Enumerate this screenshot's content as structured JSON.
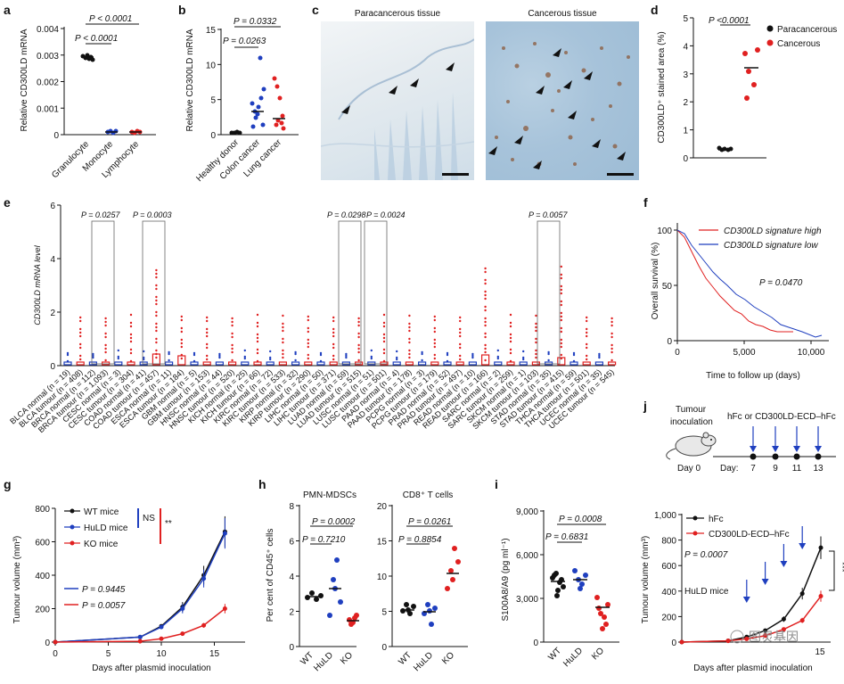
{
  "panels": {
    "a": {
      "label": "a",
      "ylabel": "Relative CD300LD mRNA",
      "yticks": [
        "0",
        "0.001",
        "0.002",
        "0.003",
        "0.004"
      ],
      "categories": [
        "Granulocyte",
        "Monocyte",
        "Lymphocyte"
      ],
      "pvals": [
        "P < 0.0001",
        "P < 0.0001"
      ],
      "colors": [
        "#111111",
        "#1f3fbf",
        "#e02020"
      ]
    },
    "b": {
      "label": "b",
      "ylabel": "Relative CD300LD mRNA",
      "yticks": [
        "0",
        "5",
        "10",
        "15"
      ],
      "categories": [
        "Healthy donor",
        "Colon cancer",
        "Lung cancer"
      ],
      "pvals": [
        "P = 0.0332",
        "P = 0.0263"
      ]
    },
    "c": {
      "label": "c",
      "left_title": "Paracancerous tissue",
      "right_title": "Cancerous tissue"
    },
    "d": {
      "label": "d",
      "ylabel": "CD300LD⁺ stained area (%)",
      "yticks": [
        "0",
        "1",
        "2",
        "3",
        "4",
        "5"
      ],
      "pval": "P <0.0001",
      "legend": [
        "Paracancerous",
        "Cancerous"
      ]
    },
    "e": {
      "label": "e",
      "ylabel": "CD300LD mRNA level",
      "yticks": [
        "0",
        "2",
        "4",
        "6"
      ],
      "pvals": [
        "P = 0.0257",
        "P = 0.0003",
        "P = 0.0298",
        "P = 0.0024",
        "P = 0.0057"
      ],
      "categories": [
        "BLCA normal (n = 19)",
        "BLCA tumour (n = 408)",
        "BRCA normal (n = 112)",
        "BRCA tumour (n = 1,093)",
        "CESC normal (n = 3)",
        "CESC tumour (n = 304)",
        "COAD normal (n = 41)",
        "COAD tumour (n = 457)",
        "ESCA normal (n = 11)",
        "ESCA tumour (n = 184)",
        "GBM normal (n = 5)",
        "GBM tumour (n = 153)",
        "HNSC normal (n = 44)",
        "HNSC tumour (n = 520)",
        "KICH normal (n = 25)",
        "KICH tumour (n = 66)",
        "KIRC normal (n = 72)",
        "KIRC tumour (n = 533)",
        "KIRP normal (n = 32)",
        "KIRP tumour (n = 290)",
        "LIHC normal (n = 50)",
        "LIHC tumour (n = 371)",
        "LUAD normal (n = 59)",
        "LUAD tumour (n = 515)",
        "LUSC normal (n = 51)",
        "LUSC tumour (n = 501)",
        "PAAD normal (n = 4)",
        "PAAD tumour (n = 178)",
        "PCPG normal (n = 3)",
        "PCPG tumour (n = 179)",
        "PRAD normal (n = 52)",
        "PRAD tumour (n = 497)",
        "READ normal (n = 10)",
        "READ tumour (n = 166)",
        "SARC normal (n = 2)",
        "SARC tumour (n = 259)",
        "SKCM normal (n = 1)",
        "SKCM tumour (n = 103)",
        "STAD normal (n = 35)",
        "STAD tumour (n = 415)",
        "THCA normal (n = 59)",
        "THCA tumour (n = 501)",
        "UCEC normal (n = 35)",
        "UCEC tumour (n = 545)"
      ]
    },
    "f": {
      "label": "f",
      "ylabel": "Overall survival (%)",
      "xlabel": "Time to follow up (days)",
      "yticks": [
        "0",
        "50",
        "100"
      ],
      "xticks": [
        "0",
        "5,000",
        "10,000"
      ],
      "legend": [
        "CD300LD signature high",
        "CD300LD signature low"
      ],
      "pval": "P = 0.0470"
    },
    "g": {
      "label": "g",
      "ylabel": "Tumour volume (mm³)",
      "xlabel": "Days after plasmid inoculation",
      "yticks": [
        "0",
        "200",
        "400",
        "600",
        "800"
      ],
      "xticks": [
        "0",
        "5",
        "10",
        "15"
      ],
      "legend": [
        "WT mice",
        "HuLD mice",
        "KO mice"
      ],
      "ns": "NS",
      "stars": "**",
      "pvals": [
        "P = 0.9445",
        "P = 0.0057"
      ]
    },
    "h": {
      "label": "h",
      "ylabel": "Per cent of CD45⁺ cells",
      "left_title": "PMN-MDSCs",
      "right_title": "CD8⁺ T cells",
      "left_yticks": [
        "0",
        "2",
        "4",
        "6",
        "8"
      ],
      "right_yticks": [
        "0",
        "5",
        "10",
        "15",
        "20"
      ],
      "categories": [
        "WT",
        "HuLD",
        "KO"
      ],
      "left_pvals": [
        "P = 0.0002",
        "P = 0.7210"
      ],
      "right_pvals": [
        "P = 0.0261",
        "P = 0.8854"
      ]
    },
    "i": {
      "label": "i",
      "ylabel": "S100A8/A9 (pg ml⁻¹)",
      "yticks": [
        "0",
        "3,000",
        "6,000",
        "9,000"
      ],
      "categories": [
        "WT",
        "HuLD",
        "KO"
      ],
      "pvals": [
        "P = 0.0008",
        "P = 0.6831"
      ]
    },
    "j": {
      "label": "j",
      "tumour_label_1": "Tumour",
      "tumour_label_2": "inoculation",
      "treatment": "hFc or CD300LD-ECD–hFc",
      "day0": "Day 0",
      "day_prefix": "Day:",
      "days": [
        "7",
        "9",
        "11",
        "13"
      ],
      "ylabel": "Tumour volume (mm³)",
      "xlabel": "Days after plasmid inoculation",
      "yticks": [
        "0",
        "200",
        "400",
        "600",
        "800",
        "1,000"
      ],
      "xtick_last": "15",
      "legend": [
        "hFc",
        "CD300LD-ECD–hFc"
      ],
      "pval": "P = 0.0007",
      "mice": "HuLD mice",
      "stars": "***"
    },
    "watermark": "图灵基因"
  }
}
